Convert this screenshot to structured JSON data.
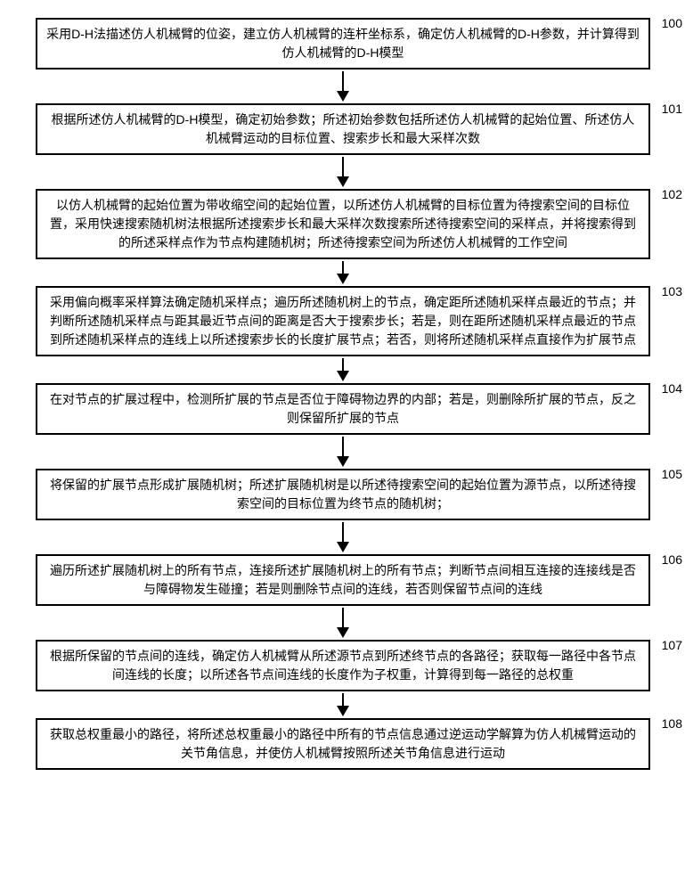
{
  "flowchart": {
    "type": "flowchart",
    "background_color": "#ffffff",
    "border_color": "#000000",
    "text_color": "#000000",
    "font_size": 14,
    "box_border_width": 2,
    "arrow_color": "#000000",
    "steps": [
      {
        "id": "100",
        "text": "采用D-H法描述仿人机械臂的位姿，建立仿人机械臂的连杆坐标系，确定仿人机械臂的D-H参数，并计算得到仿人机械臂的D-H模型",
        "arrow_len": 22
      },
      {
        "id": "101",
        "text": "根据所述仿人机械臂的D-H模型，确定初始参数；所述初始参数包括所述仿人机械臂的起始位置、所述仿人机械臂运动的目标位置、搜索步长和最大采样次数",
        "arrow_len": 22
      },
      {
        "id": "102",
        "text": "以仿人机械臂的起始位置为带收缩空间的起始位置，以所述仿人机械臂的目标位置为待搜索空间的目标位置，采用快速搜索随机树法根据所述搜索步长和最大采样次数搜索所述待搜索空间的采样点，并将搜索得到的所述采样点作为节点构建随机树；所述待搜索空间为所述仿人机械臂的工作空间",
        "arrow_len": 14
      },
      {
        "id": "103",
        "text": "采用偏向概率采样算法确定随机采样点；遍历所述随机树上的节点，确定距所述随机采样点最近的节点；并判断所述随机采样点与距其最近节点间的距离是否大于搜索步长；若是，则在距所述随机采样点最近的节点到所述随机采样点的连线上以所述搜索步长的长度扩展节点；若否，则将所述随机采样点直接作为扩展节点",
        "arrow_len": 14
      },
      {
        "id": "104",
        "text": "在对节点的扩展过程中，检测所扩展的节点是否位于障碍物边界的内部；若是，则删除所扩展的节点，反之则保留所扩展的节点",
        "arrow_len": 22
      },
      {
        "id": "105",
        "text": "将保留的扩展节点形成扩展随机树；所述扩展随机树是以所述待搜索空间的起始位置为源节点，以所述待搜索空间的目标位置为终节点的随机树；",
        "arrow_len": 22
      },
      {
        "id": "106",
        "text": "遍历所述扩展随机树上的所有节点，连接所述扩展随机树上的所有节点；判断节点间相互连接的连接线是否与障碍物发生碰撞；若是则删除节点间的连线，若否则保留节点间的连线",
        "arrow_len": 22
      },
      {
        "id": "107",
        "text": "根据所保留的节点间的连线，确定仿人机械臂从所述源节点到所述终节点的各路径；获取每一路径中各节点间连线的长度；以所述各节点间连线的长度作为子权重，计算得到每一路径的总权重",
        "arrow_len": 14
      },
      {
        "id": "108",
        "text": "获取总权重最小的路径，将所述总权重最小的路径中所有的节点信息通过逆运动学解算为仿人机械臂运动的关节角信息，并使仿人机械臂按照所述关节角信息进行运动",
        "arrow_len": 0
      }
    ]
  }
}
